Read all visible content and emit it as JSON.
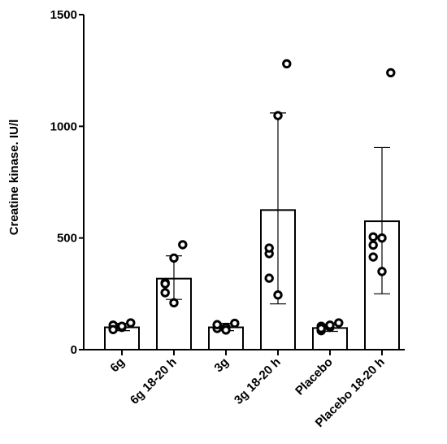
{
  "chart_data": {
    "type": "bar",
    "title": "",
    "xlabel": "",
    "ylabel": "Creatine kinase. IU/l",
    "ylim": [
      0,
      1500
    ],
    "yticks": [
      0,
      500,
      1000,
      1500
    ],
    "grid": false,
    "categories": [
      "6g",
      "6g 18-20 h",
      "3g",
      "3g 18-20 h",
      "Placebo",
      "Placebo 18-20 h"
    ],
    "values": [
      100,
      318,
      100,
      625,
      97,
      575
    ],
    "error_bars": [
      {
        "low": 85,
        "high": 118
      },
      {
        "low": 225,
        "high": 420
      },
      {
        "low": 85,
        "high": 118
      },
      {
        "low": 205,
        "high": 1060
      },
      {
        "low": 82,
        "high": 115
      },
      {
        "low": 250,
        "high": 905
      }
    ],
    "points": [
      [
        120,
        100,
        95,
        110,
        90,
        105
      ],
      [
        470,
        410,
        300,
        295,
        255,
        210
      ],
      [
        118,
        100,
        110,
        95,
        112,
        88
      ],
      [
        1280,
        1048,
        430,
        455,
        320,
        245
      ],
      [
        120,
        100,
        105,
        85,
        95,
        110
      ],
      [
        1240,
        500,
        505,
        468,
        415,
        350
      ]
    ]
  }
}
